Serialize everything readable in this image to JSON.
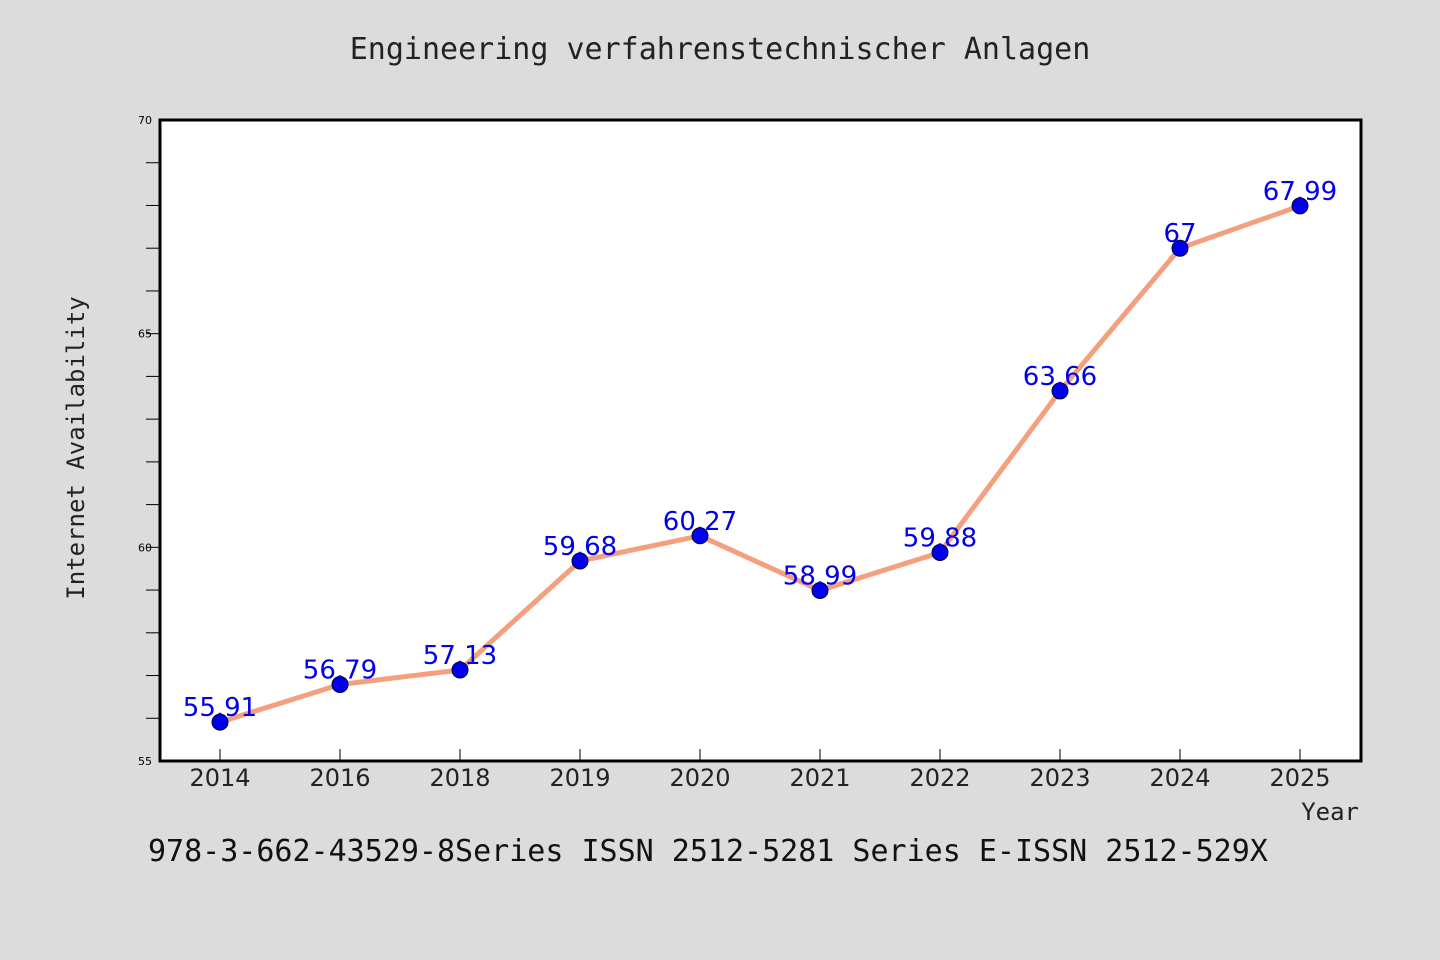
{
  "header": {
    "title": "Engineering verfahrenstechnischer Anlagen"
  },
  "footer": {
    "note": "978-3-662-43529-8Series ISSN 2512-5281 Series E-ISSN 2512-529X"
  },
  "colors": {
    "background": "#dcdcdc",
    "plot_background": "#ffffff",
    "line": "#f4a07e",
    "marker": "#0000ee",
    "data_label": "#0000ee"
  },
  "chart_data": {
    "type": "line",
    "title": "Engineering verfahrenstechnischer Anlagen",
    "xlabel": "Year",
    "ylabel": "Internet Availability",
    "categories": [
      "2014",
      "2016",
      "2018",
      "2019",
      "2020",
      "2021",
      "2022",
      "2023",
      "2024",
      "2025"
    ],
    "series": [
      {
        "values": [
          55.91,
          56.79,
          57.13,
          59.68,
          60.27,
          58.99,
          59.88,
          63.66,
          67,
          67.99
        ],
        "data_labels": [
          "55.91",
          "56.79",
          "57.13",
          "59.68",
          "60.27",
          "58.99",
          "59.88",
          "63.66",
          "67",
          "67.99"
        ]
      }
    ],
    "ylim": [
      55,
      70
    ],
    "yticks": [
      "55",
      "60",
      "65",
      "70"
    ],
    "grid": false,
    "legend": "none"
  }
}
